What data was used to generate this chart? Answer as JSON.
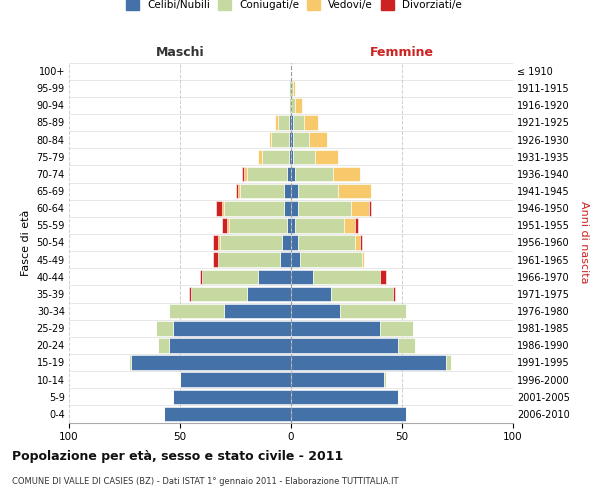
{
  "age_groups": [
    "0-4",
    "5-9",
    "10-14",
    "15-19",
    "20-24",
    "25-29",
    "30-34",
    "35-39",
    "40-44",
    "45-49",
    "50-54",
    "55-59",
    "60-64",
    "65-69",
    "70-74",
    "75-79",
    "80-84",
    "85-89",
    "90-94",
    "95-99",
    "100+"
  ],
  "birth_years": [
    "2006-2010",
    "2001-2005",
    "1996-2000",
    "1991-1995",
    "1986-1990",
    "1981-1985",
    "1976-1980",
    "1971-1975",
    "1966-1970",
    "1961-1965",
    "1956-1960",
    "1951-1955",
    "1946-1950",
    "1941-1945",
    "1936-1940",
    "1931-1935",
    "1926-1930",
    "1921-1925",
    "1916-1920",
    "1911-1915",
    "≤ 1910"
  ],
  "males": {
    "celibi": [
      57,
      53,
      50,
      72,
      55,
      53,
      30,
      20,
      15,
      5,
      4,
      2,
      3,
      3,
      2,
      1,
      1,
      1,
      0,
      0,
      0
    ],
    "coniugati": [
      0,
      0,
      0,
      1,
      5,
      8,
      25,
      25,
      25,
      28,
      28,
      26,
      27,
      20,
      18,
      12,
      8,
      5,
      1,
      1,
      0
    ],
    "vedovi": [
      0,
      0,
      0,
      0,
      0,
      0,
      0,
      0,
      0,
      0,
      1,
      1,
      1,
      1,
      1,
      2,
      1,
      1,
      0,
      0,
      0
    ],
    "divorziati": [
      0,
      0,
      0,
      0,
      0,
      0,
      0,
      1,
      1,
      2,
      2,
      2,
      3,
      1,
      1,
      0,
      0,
      0,
      0,
      0,
      0
    ]
  },
  "females": {
    "nubili": [
      52,
      48,
      42,
      70,
      48,
      40,
      22,
      18,
      10,
      4,
      3,
      2,
      3,
      3,
      2,
      1,
      1,
      1,
      0,
      0,
      0
    ],
    "coniugate": [
      0,
      0,
      1,
      2,
      8,
      15,
      30,
      28,
      30,
      28,
      26,
      22,
      24,
      18,
      17,
      10,
      7,
      5,
      2,
      1,
      0
    ],
    "vedove": [
      0,
      0,
      0,
      0,
      0,
      0,
      0,
      0,
      0,
      1,
      2,
      5,
      8,
      15,
      12,
      10,
      8,
      6,
      3,
      1,
      0
    ],
    "divorziate": [
      0,
      0,
      0,
      0,
      0,
      0,
      0,
      1,
      3,
      0,
      1,
      1,
      1,
      0,
      0,
      0,
      0,
      0,
      0,
      0,
      0
    ]
  },
  "colors": {
    "celibi_nubili": "#4472a8",
    "coniugati": "#c5d9a0",
    "vedovi": "#f8c96a",
    "divorziati": "#cc2222"
  },
  "xlim": 100,
  "title": "Popolazione per età, sesso e stato civile - 2011",
  "subtitle": "COMUNE DI VALLE DI CASIES (BZ) - Dati ISTAT 1° gennaio 2011 - Elaborazione TUTTITALIA.IT",
  "xlabel_left": "Maschi",
  "xlabel_right": "Femmine",
  "ylabel_left": "Fasce di età",
  "ylabel_right": "Anni di nascita",
  "legend_labels": [
    "Celibi/Nubili",
    "Coniugati/e",
    "Vedovi/e",
    "Divorziati/e"
  ],
  "background_color": "#ffffff",
  "bar_edge_color": "#ffffff",
  "grid_color": "#cccccc"
}
